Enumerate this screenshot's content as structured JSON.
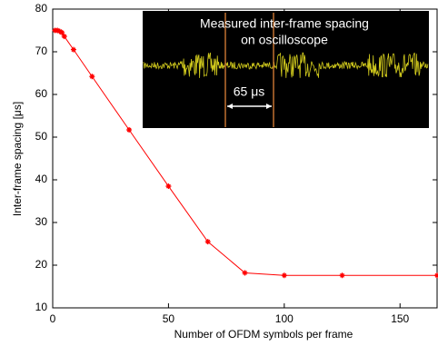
{
  "chart_data": {
    "type": "line",
    "x_label": "Number of OFDM symbols per frame",
    "y_label": "Inter-frame spacing [μs]",
    "annotations": [
      "Measured inter-frame spacing",
      "on oscilloscope",
      "65 μs"
    ],
    "x": [
      1,
      2,
      3,
      4,
      5,
      9,
      17,
      33,
      50,
      67,
      83,
      100,
      125,
      166
    ],
    "series": [
      {
        "color": "#ff0000",
        "values": [
          75,
          75,
          74.8,
          74.5,
          73.6,
          70.5,
          64.2,
          51.7,
          38.5,
          25.5,
          18.2,
          17.6,
          17.6,
          17.6
        ]
      }
    ],
    "xlim": [
      0,
      166
    ],
    "xticks": [
      0,
      50,
      100,
      150
    ],
    "ylim": [
      10,
      80
    ],
    "yticks": [
      10,
      20,
      30,
      40,
      50,
      60,
      70,
      80
    ]
  }
}
